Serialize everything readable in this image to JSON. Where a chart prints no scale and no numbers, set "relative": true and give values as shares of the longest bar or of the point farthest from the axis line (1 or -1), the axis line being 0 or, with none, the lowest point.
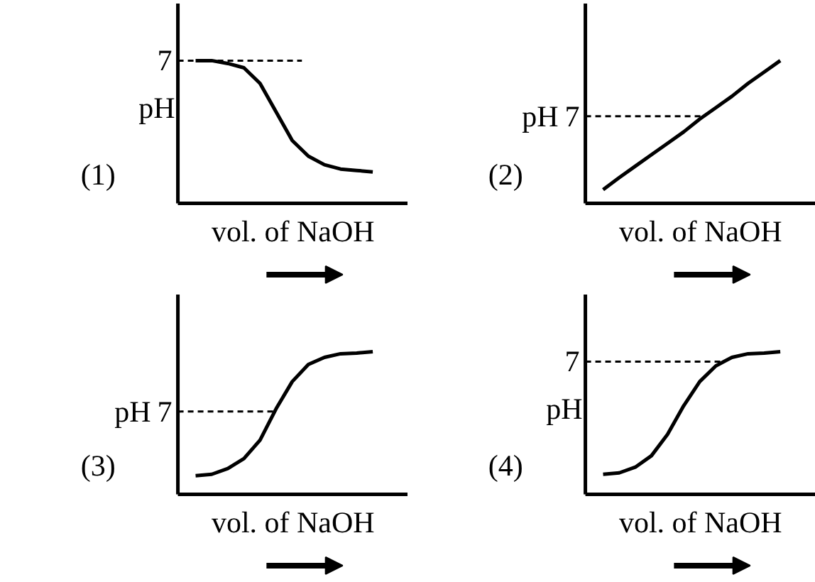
{
  "chart_data": [
    {
      "type": "line",
      "title": "(1)",
      "xlabel": "vol. of NaOH",
      "ylabel": "pH",
      "relative": true,
      "categories": [
        null,
        null,
        null,
        null,
        null,
        null,
        null,
        null,
        null,
        null,
        null,
        null
      ],
      "series": [
        {
          "color": "#000000",
          "values": [
            1.0,
            1.0,
            0.98,
            0.95,
            0.84,
            0.64,
            0.44,
            0.33,
            0.27,
            0.24,
            0.23,
            0.22
          ]
        }
      ],
      "ref_lines": [
        {
          "axis": "y",
          "value": 1.0,
          "line_style": "dashed"
        }
      ],
      "annotations": [
        "7"
      ]
    },
    {
      "type": "line",
      "title": "(2)",
      "xlabel": "vol. of NaOH",
      "ylabel": "pH",
      "relative": true,
      "categories": [
        null,
        null,
        null,
        null,
        null,
        null,
        null,
        null,
        null,
        null,
        null,
        null
      ],
      "series": [
        {
          "color": "#000000",
          "values": [
            0.095,
            0.18,
            0.26,
            0.34,
            0.42,
            0.5,
            0.59,
            0.67,
            0.75,
            0.84,
            0.92,
            1.0
          ]
        }
      ],
      "ref_lines": [
        {
          "axis": "y",
          "value": 0.61,
          "line_style": "dashed"
        }
      ],
      "annotations": [
        "7"
      ]
    },
    {
      "type": "line",
      "title": "(3)",
      "xlabel": "vol. of NaOH",
      "ylabel": "pH",
      "relative": true,
      "categories": [
        null,
        null,
        null,
        null,
        null,
        null,
        null,
        null,
        null,
        null,
        null,
        null
      ],
      "series": [
        {
          "color": "#000000",
          "values": [
            0.13,
            0.14,
            0.18,
            0.25,
            0.38,
            0.6,
            0.79,
            0.91,
            0.96,
            0.985,
            0.99,
            1.0
          ]
        }
      ],
      "ref_lines": [
        {
          "axis": "y",
          "value": 0.58,
          "line_style": "dashed"
        }
      ],
      "annotations": [
        "7"
      ]
    },
    {
      "type": "line",
      "title": "(4)",
      "xlabel": "vol. of NaOH",
      "ylabel": "pH",
      "relative": true,
      "categories": [
        null,
        null,
        null,
        null,
        null,
        null,
        null,
        null,
        null,
        null,
        null,
        null
      ],
      "series": [
        {
          "color": "#000000",
          "values": [
            0.14,
            0.15,
            0.19,
            0.27,
            0.42,
            0.62,
            0.79,
            0.9,
            0.96,
            0.985,
            0.99,
            1.0
          ]
        }
      ],
      "ref_lines": [
        {
          "axis": "y",
          "value": 0.93,
          "line_style": "dashed"
        }
      ],
      "annotations": [
        "7"
      ]
    }
  ]
}
